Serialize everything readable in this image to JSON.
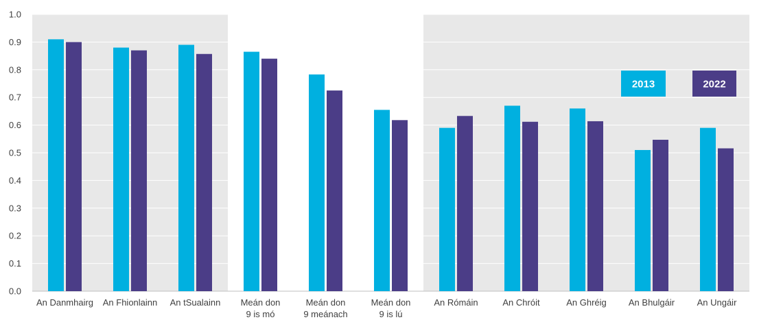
{
  "chart_data": {
    "type": "bar",
    "categories": [
      [
        "An Danmhairg"
      ],
      [
        "An Fhionlainn"
      ],
      [
        "An tSualainn"
      ],
      [
        "Meán don",
        "9 is mó"
      ],
      [
        "Meán don",
        "9 meánach"
      ],
      [
        "Meán don",
        "9 is lú"
      ],
      [
        "An Rómáin"
      ],
      [
        "An Chróit"
      ],
      [
        "An Ghréig"
      ],
      [
        "An Bhulgáir"
      ],
      [
        "An Ungáir"
      ]
    ],
    "series": [
      {
        "name": "2013",
        "color": "#00b0e0",
        "values": [
          0.91,
          0.88,
          0.89,
          0.865,
          0.783,
          0.655,
          0.59,
          0.67,
          0.66,
          0.51,
          0.59
        ]
      },
      {
        "name": "2022",
        "color": "#4b3d87",
        "values": [
          0.9,
          0.87,
          0.857,
          0.84,
          0.725,
          0.618,
          0.633,
          0.612,
          0.614,
          0.547,
          0.516
        ]
      }
    ],
    "ylim": [
      0,
      1.0
    ],
    "yticks": [
      "0.0",
      "0.1",
      "0.2",
      "0.3",
      "0.4",
      "0.5",
      "0.6",
      "0.7",
      "0.8",
      "0.9",
      "1.0"
    ],
    "grid": true,
    "shaded_groups": [
      [
        0,
        2
      ],
      [
        6,
        10
      ]
    ],
    "shade_color": "#e8e8e8",
    "legend_placement": "top-right"
  }
}
